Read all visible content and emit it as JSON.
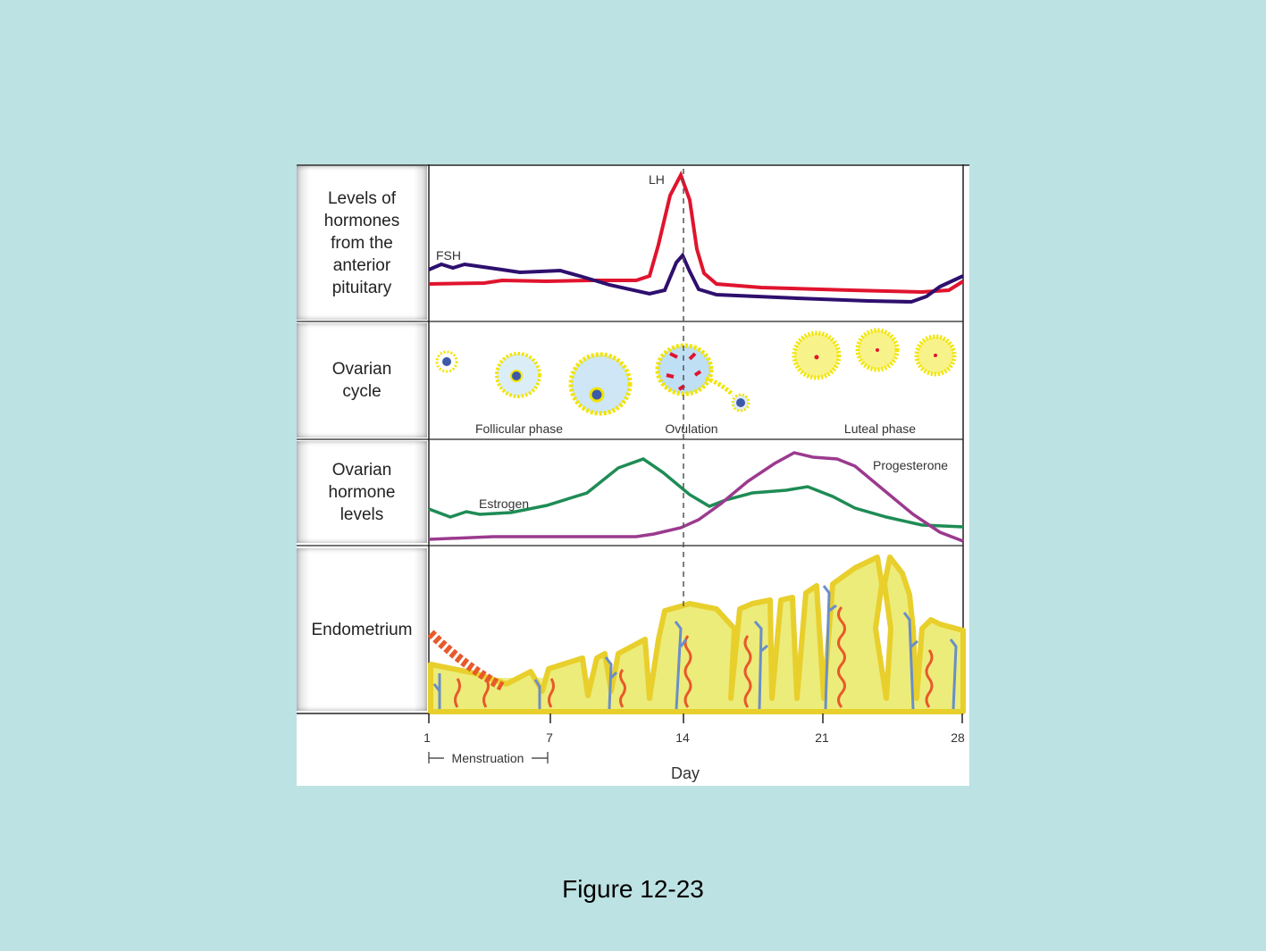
{
  "rows": [
    {
      "label": "Levels of\nhormones\nfrom the\nanterior\npituitary"
    },
    {
      "label": "Ovarian\ncycle"
    },
    {
      "label": "Ovarian\nhormone\nlevels"
    },
    {
      "label": "Endometrium"
    }
  ],
  "pituitary": {
    "fsh_label": "FSH",
    "lh_label": "LH"
  },
  "ovarian_cycle": {
    "follicular_label": "Follicular phase",
    "ovulation_label": "Ovulation",
    "luteal_label": "Luteal phase"
  },
  "ovarian_hormones": {
    "estrogen_label": "Estrogen",
    "progesterone_label": "Progesterone"
  },
  "axis": {
    "ticks": [
      "1",
      "7",
      "14",
      "21",
      "28"
    ],
    "menstruation_label": "Menstruation",
    "xlabel": "Day"
  },
  "caption": "Figure 12-23",
  "colors": {
    "background": "#bde2e3",
    "lh": "#e0142e",
    "fsh": "#2e0f6e",
    "estrogen": "#1e8c55",
    "progesterone": "#9b3a8e",
    "follicle": "#f2e400",
    "endometrium_fill": "#ecec7a",
    "endometrium_edge": "#e8cf2c",
    "artery": "#e8592a",
    "gland": "#6a8ec8"
  }
}
